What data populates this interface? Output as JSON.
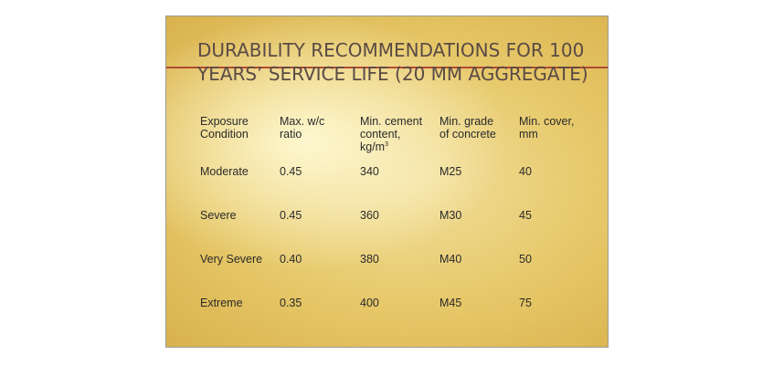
{
  "slide": {
    "title_line1": "DURABILITY RECOMMENDATIONS FOR 100",
    "title_line2": "YEARS’ SERVICE LIFE (20 MM AGGREGATE)"
  },
  "table": {
    "headers": [
      [
        "Exposure",
        "Condition"
      ],
      [
        "Max. w/c",
        "ratio"
      ],
      [
        "Min. cement",
        "content,",
        "kg/m",
        "3"
      ],
      [
        "Min. grade",
        "of concrete"
      ],
      [
        "Min. cover,",
        "mm"
      ]
    ],
    "rows": [
      [
        "Moderate",
        "0.45",
        "340",
        "M25",
        "40"
      ],
      [
        "Severe",
        "0.45",
        "360",
        "M30",
        "45"
      ],
      [
        "Very Severe",
        "0.40",
        "380",
        "M40",
        "50"
      ],
      [
        "Extreme",
        "0.35",
        "400",
        "M45",
        "75"
      ]
    ]
  }
}
